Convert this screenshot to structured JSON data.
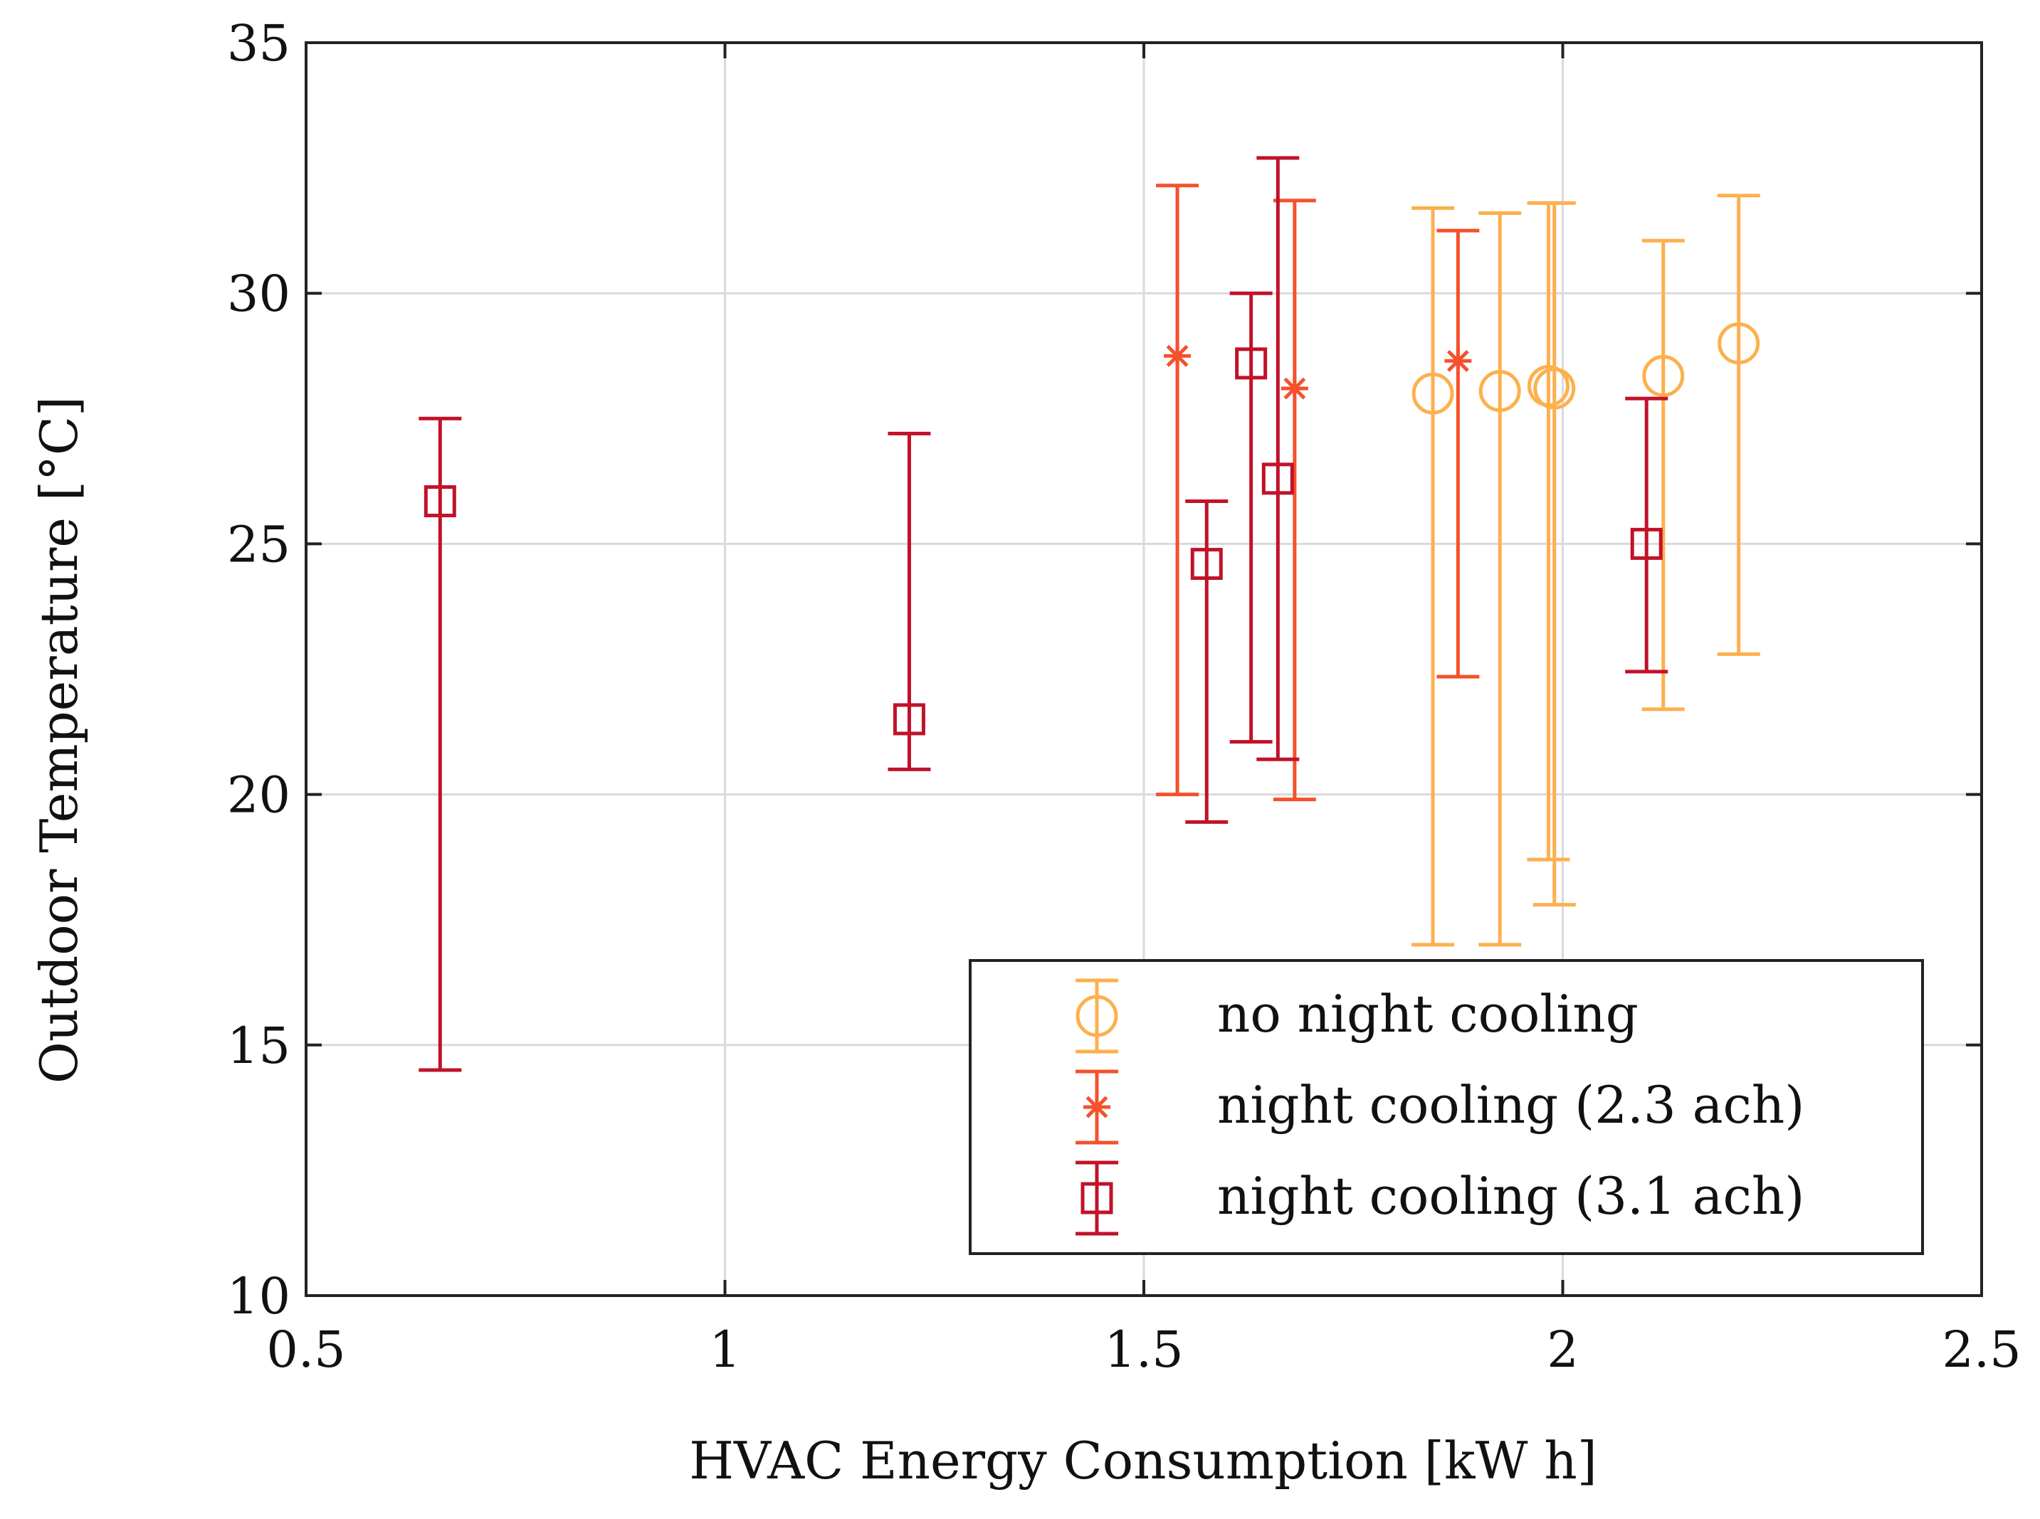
{
  "chart_data": {
    "type": "errorbar-scatter",
    "xlabel": "HVAC Energy Consumption [kW h]",
    "ylabel": "Outdoor Temperature [°C]",
    "xlim": [
      0.5,
      2.5
    ],
    "ylim": [
      10,
      35
    ],
    "xticks": [
      0.5,
      1,
      1.5,
      2,
      2.5
    ],
    "xtick_labels": [
      "0.5",
      "1",
      "1.5",
      "2",
      "2.5"
    ],
    "yticks": [
      10,
      15,
      20,
      25,
      30,
      35
    ],
    "ytick_labels": [
      "10",
      "15",
      "20",
      "25",
      "30",
      "35"
    ],
    "grid": true,
    "legend_position": "bottom-right",
    "series": [
      {
        "name": "no night cooling",
        "color": "#FDB04E",
        "marker": "circle",
        "points": [
          {
            "x": 1.845,
            "y": 28.0,
            "low": 17.0,
            "high": 31.7
          },
          {
            "x": 1.925,
            "y": 28.05,
            "low": 17.0,
            "high": 31.6
          },
          {
            "x": 1.983,
            "y": 28.15,
            "low": 18.7,
            "high": 31.8
          },
          {
            "x": 1.99,
            "y": 28.1,
            "low": 17.8,
            "high": 31.8
          },
          {
            "x": 2.12,
            "y": 28.35,
            "low": 21.7,
            "high": 31.05
          },
          {
            "x": 2.21,
            "y": 29.0,
            "low": 22.8,
            "high": 31.95
          }
        ]
      },
      {
        "name": "night cooling (2.3 ach)",
        "color": "#F4512C",
        "marker": "asterisk",
        "points": [
          {
            "x": 1.54,
            "y": 28.75,
            "low": 20.0,
            "high": 32.15
          },
          {
            "x": 1.68,
            "y": 28.1,
            "low": 19.9,
            "high": 31.85
          },
          {
            "x": 1.875,
            "y": 28.65,
            "low": 22.35,
            "high": 31.25
          }
        ]
      },
      {
        "name": "night cooling (3.1 ach)",
        "color": "#C1122A",
        "marker": "square",
        "points": [
          {
            "x": 0.66,
            "y": 25.85,
            "low": 14.5,
            "high": 27.5
          },
          {
            "x": 1.22,
            "y": 21.5,
            "low": 20.5,
            "high": 27.2
          },
          {
            "x": 1.575,
            "y": 24.6,
            "low": 19.45,
            "high": 25.85
          },
          {
            "x": 1.628,
            "y": 28.6,
            "low": 21.05,
            "high": 30.0
          },
          {
            "x": 1.66,
            "y": 26.3,
            "low": 20.7,
            "high": 32.7
          },
          {
            "x": 2.1,
            "y": 25.0,
            "low": 22.45,
            "high": 27.9
          }
        ]
      }
    ]
  }
}
